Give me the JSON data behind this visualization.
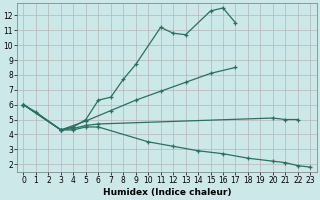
{
  "xlabel": "Humidex (Indice chaleur)",
  "bg_color": "#cde8e8",
  "grid_color": "#b5b5b5",
  "line_color": "#2a7060",
  "xlim": [
    -0.5,
    23.5
  ],
  "ylim": [
    1.5,
    12.8
  ],
  "yticks": [
    2,
    3,
    4,
    5,
    6,
    7,
    8,
    9,
    10,
    11,
    12
  ],
  "xticks": [
    0,
    1,
    2,
    3,
    4,
    5,
    6,
    7,
    8,
    9,
    10,
    11,
    12,
    13,
    14,
    15,
    16,
    17,
    18,
    19,
    20,
    21,
    22,
    23
  ],
  "series": [
    {
      "x": [
        0,
        1,
        3,
        4,
        5,
        6,
        7,
        8,
        9,
        11,
        12,
        13,
        15,
        16,
        17
      ],
      "y": [
        6.0,
        5.5,
        4.3,
        4.5,
        5.0,
        6.3,
        6.5,
        7.7,
        8.7,
        11.2,
        10.8,
        10.7,
        12.3,
        12.5,
        11.5
      ]
    },
    {
      "x": [
        0,
        3,
        5,
        7,
        9,
        11,
        13,
        15,
        17
      ],
      "y": [
        6.0,
        4.3,
        4.9,
        5.6,
        6.3,
        6.9,
        7.5,
        8.1,
        8.5
      ]
    },
    {
      "x": [
        0,
        3,
        4,
        5,
        6,
        20,
        21,
        22
      ],
      "y": [
        6.0,
        4.3,
        4.4,
        4.6,
        4.7,
        5.1,
        5.0,
        5.0
      ]
    },
    {
      "x": [
        0,
        3,
        4,
        5,
        6,
        10,
        12,
        14,
        16,
        18,
        20,
        21,
        22,
        23
      ],
      "y": [
        6.0,
        4.3,
        4.3,
        4.5,
        4.5,
        3.5,
        3.2,
        2.9,
        2.7,
        2.4,
        2.2,
        2.1,
        1.9,
        1.8
      ]
    }
  ]
}
